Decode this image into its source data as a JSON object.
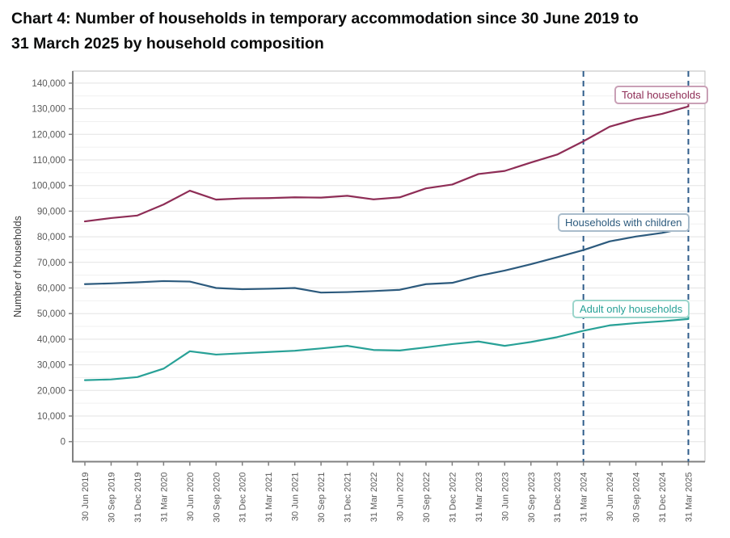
{
  "page": {
    "title_lines": [
      "Chart 4: Number of households in temporary accommodation since 30 June 2019 to",
      "31 March 2025 by household composition"
    ]
  },
  "chart_data": {
    "type": "line",
    "title": "Chart 4: Number of households in temporary accommodation since 30 June 2019 to 31 March 2025 by household composition",
    "xlabel": "",
    "ylabel": "Number of households",
    "ylim": [
      0,
      140000
    ],
    "y_tick_step": 10000,
    "y_ticks": [
      "0",
      "10,000",
      "20,000",
      "30,000",
      "40,000",
      "50,000",
      "60,000",
      "70,000",
      "80,000",
      "90,000",
      "100,000",
      "110,000",
      "120,000",
      "130,000",
      "140,000"
    ],
    "grid": "horizontal, minor lines every 5,000",
    "legend_position": "inline line labels at right",
    "categories": [
      "30 Jun 2019",
      "30 Sep 2019",
      "31 Dec 2019",
      "31 Mar 2020",
      "30 Jun 2020",
      "30 Sep 2020",
      "31 Dec 2020",
      "31 Mar 2021",
      "30 Jun 2021",
      "30 Sep 2021",
      "31 Dec 2021",
      "31 Mar 2022",
      "30 Jun 2022",
      "30 Sep 2022",
      "31 Dec 2022",
      "31 Mar 2023",
      "30 Jun 2023",
      "30 Sep 2023",
      "31 Dec 2023",
      "31 Mar 2024",
      "30 Jun 2024",
      "30 Sep 2024",
      "31 Dec 2024",
      "31 Mar 2025"
    ],
    "series": [
      {
        "name": "Total households",
        "color": "#8e2d56",
        "values": [
          86000,
          87300,
          88300,
          92600,
          98000,
          94500,
          95000,
          95100,
          95400,
          95300,
          96000,
          94600,
          95400,
          98900,
          100400,
          104500,
          105700,
          109000,
          112100,
          117300,
          123000,
          125900,
          128000,
          130900
        ]
      },
      {
        "name": "Households with children",
        "color": "#2c5a7d",
        "values": [
          61500,
          61800,
          62200,
          62700,
          62500,
          60000,
          59500,
          59700,
          60000,
          58200,
          58400,
          58800,
          59300,
          61500,
          62000,
          64700,
          66800,
          69300,
          72000,
          74800,
          78200,
          80100,
          81500,
          83700
        ]
      },
      {
        "name": "Adult only households",
        "color": "#28a197",
        "values": [
          24000,
          24300,
          25200,
          28500,
          35300,
          34000,
          34500,
          35000,
          35500,
          36400,
          37400,
          35800,
          35600,
          36800,
          38100,
          39100,
          37400,
          38900,
          40800,
          43300,
          45400,
          46300,
          47000,
          47900
        ]
      }
    ],
    "markers": [
      {
        "category": "31 Mar 2024",
        "style": "vertical dashed line"
      },
      {
        "category": "31 Mar 2025",
        "style": "vertical dashed line"
      }
    ],
    "marker_color": "#2e5c8a"
  }
}
